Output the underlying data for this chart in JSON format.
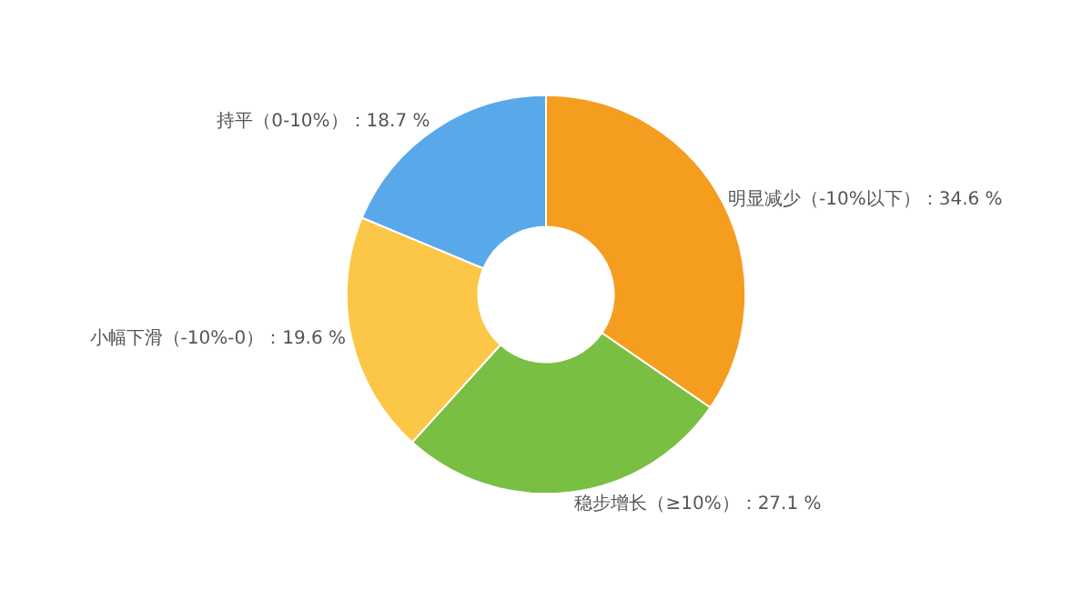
{
  "chart_data": {
    "type": "donut",
    "categories": [
      "明显减少（-10%以下）",
      "稳步增长（≥10%）",
      "小幅下滑（-10%-0）",
      "持平（0-10%）"
    ],
    "values": [
      34.6,
      27.1,
      19.6,
      18.7
    ],
    "value_labels": [
      "34.6 %",
      "27.1 %",
      "19.6 %",
      "18.7 %"
    ],
    "colors": [
      "#f59d1e",
      "#78bf43",
      "#fcc647",
      "#58a8ea"
    ],
    "legend": false
  }
}
